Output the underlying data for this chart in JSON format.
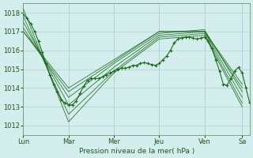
{
  "title": "",
  "xlabel": "Pression niveau de la mer( hPa )",
  "ylabel": "",
  "bg_color": "#d4eeed",
  "grid_color": "#b0d0ce",
  "line_color": "#1a6b1a",
  "ylim": [
    1011.5,
    1018.5
  ],
  "yticks": [
    1012,
    1013,
    1014,
    1015,
    1016,
    1017,
    1018
  ],
  "day_positions": [
    0,
    48,
    96,
    144,
    192,
    232,
    240
  ],
  "day_labels": [
    "Lun",
    "Mar",
    "Mer",
    "Jeu",
    "Ven",
    "Sa"
  ],
  "lines": [
    {
      "x": [
        0,
        48,
        96,
        144,
        192,
        232
      ],
      "y": [
        1018.2,
        1012.2,
        1014.8,
        1016.6,
        1016.8,
        1013.0
      ]
    },
    {
      "x": [
        0,
        48,
        96,
        144,
        192,
        232
      ],
      "y": [
        1017.8,
        1012.6,
        1014.9,
        1016.7,
        1016.9,
        1013.2
      ]
    },
    {
      "x": [
        0,
        48,
        96,
        144,
        192,
        232
      ],
      "y": [
        1017.5,
        1013.1,
        1015.1,
        1016.8,
        1017.0,
        1013.5
      ]
    },
    {
      "x": [
        0,
        48,
        96,
        144,
        192,
        232
      ],
      "y": [
        1017.2,
        1013.5,
        1015.3,
        1016.9,
        1017.1,
        1013.8
      ]
    },
    {
      "x": [
        0,
        48,
        96,
        144,
        192,
        232
      ],
      "y": [
        1017.0,
        1013.8,
        1015.4,
        1017.0,
        1017.0,
        1014.0
      ]
    },
    {
      "x": [
        0,
        48,
        96,
        144,
        192,
        232
      ],
      "y": [
        1017.0,
        1014.0,
        1015.5,
        1017.0,
        1017.0,
        1014.2
      ]
    }
  ],
  "detailed_x": [
    0,
    4,
    8,
    12,
    16,
    20,
    24,
    28,
    32,
    36,
    40,
    44,
    48,
    52,
    56,
    60,
    64,
    68,
    72,
    76,
    80,
    84,
    88,
    92,
    96,
    100,
    104,
    108,
    112,
    116,
    120,
    124,
    128,
    132,
    136,
    140,
    144,
    148,
    152,
    156,
    160,
    164,
    168,
    172,
    176,
    180,
    184,
    188,
    192,
    196,
    200,
    204,
    208,
    212,
    216,
    220,
    224,
    228,
    232,
    236,
    240
  ],
  "detailed_y": [
    1017.9,
    1017.7,
    1017.4,
    1017.0,
    1016.5,
    1015.9,
    1015.3,
    1014.7,
    1014.2,
    1013.8,
    1013.4,
    1013.2,
    1013.1,
    1013.1,
    1013.3,
    1013.7,
    1014.1,
    1014.4,
    1014.5,
    1014.5,
    1014.5,
    1014.6,
    1014.7,
    1014.8,
    1014.9,
    1015.0,
    1015.05,
    1015.05,
    1015.1,
    1015.2,
    1015.2,
    1015.3,
    1015.35,
    1015.3,
    1015.25,
    1015.2,
    1015.3,
    1015.5,
    1015.7,
    1016.0,
    1016.4,
    1016.6,
    1016.65,
    1016.7,
    1016.7,
    1016.65,
    1016.6,
    1016.65,
    1016.7,
    1016.5,
    1016.1,
    1015.5,
    1014.9,
    1014.2,
    1014.15,
    1014.5,
    1014.9,
    1015.1,
    1014.8,
    1014.0,
    1013.2
  ]
}
